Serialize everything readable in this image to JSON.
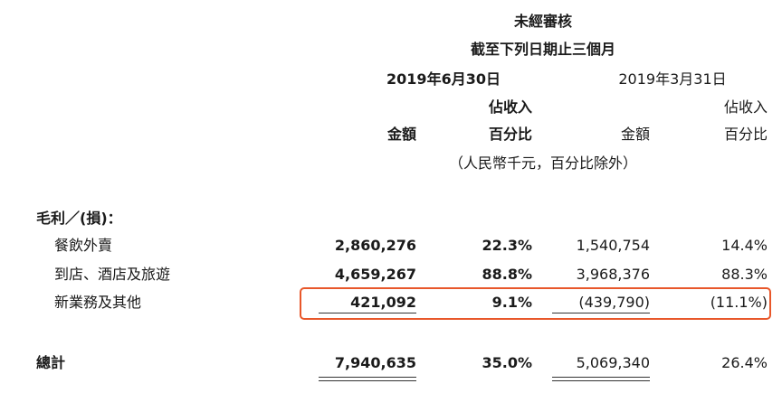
{
  "header": {
    "unaudited": "未經審核",
    "period": "截至下列日期止三個月",
    "date_current": "2019年6月30日",
    "date_prior": "2019年3月31日",
    "revenue_pct_line1": "佔收入",
    "amount_label": "金額",
    "pct_label": "百分比",
    "unit_note": "（人民幣千元，百分比除外）"
  },
  "section_title": "毛利／(損)：",
  "rows": [
    {
      "label": "餐飲外賣",
      "amount_2019q2": "2,860,276",
      "pct_2019q2": "22.3%",
      "amount_2019q1": "1,540,754",
      "pct_2019q1": "14.4%"
    },
    {
      "label": "到店、酒店及旅遊",
      "amount_2019q2": "4,659,267",
      "pct_2019q2": "88.8%",
      "amount_2019q1": "3,968,376",
      "pct_2019q1": "88.3%"
    },
    {
      "label": "新業務及其他",
      "amount_2019q2": "421,092",
      "pct_2019q2": "9.1%",
      "amount_2019q1": "(439,790)",
      "pct_2019q1": "(11.1%)"
    }
  ],
  "total": {
    "label": "總計",
    "amount_2019q2": "7,940,635",
    "pct_2019q2": "35.0%",
    "amount_2019q1": "5,069,340",
    "pct_2019q1": "26.4%"
  },
  "colors": {
    "highlight_border": "#e8572a"
  }
}
